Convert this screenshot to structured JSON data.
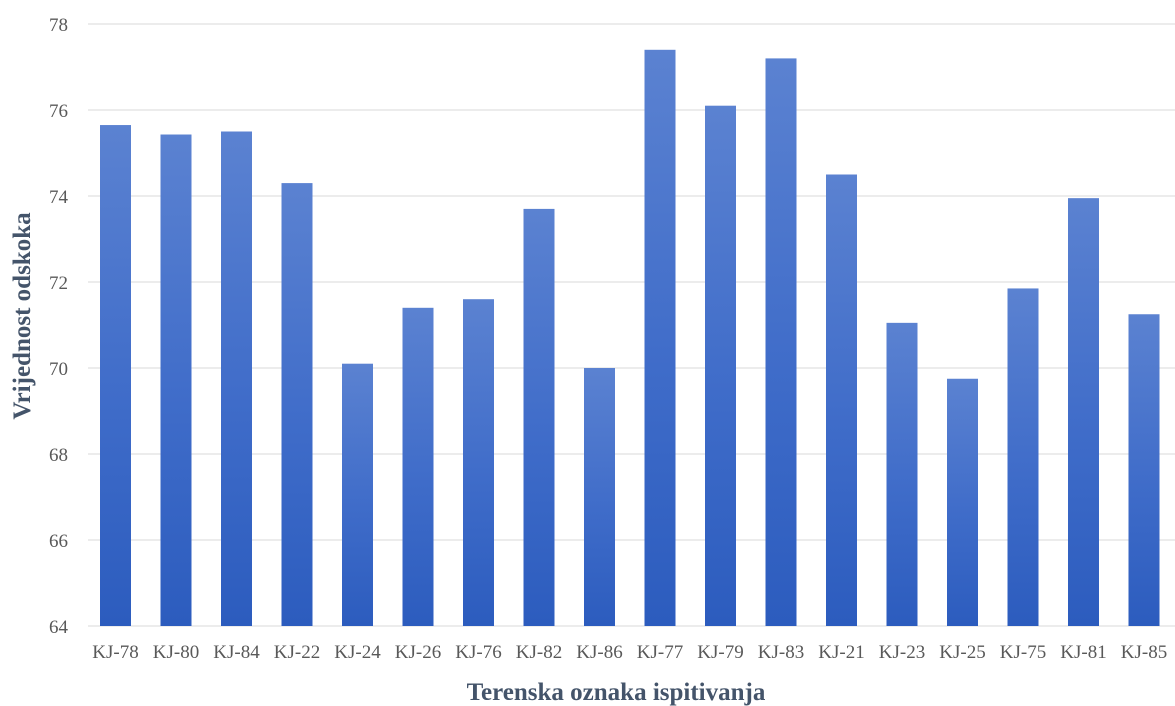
{
  "chart_data": {
    "type": "bar",
    "title": "",
    "xlabel": "Terenska oznaka ispitivanja",
    "ylabel": "Vrijednost odskoka",
    "categories": [
      "KJ-78",
      "KJ-80",
      "KJ-84",
      "KJ-22",
      "KJ-24",
      "KJ-26",
      "KJ-76",
      "KJ-82",
      "KJ-86",
      "KJ-77",
      "KJ-79",
      "KJ-83",
      "KJ-21",
      "KJ-23",
      "KJ-25",
      "KJ-75",
      "KJ-81",
      "KJ-85"
    ],
    "values": [
      75.65,
      75.43,
      75.5,
      74.3,
      70.1,
      71.4,
      71.6,
      73.7,
      70.0,
      77.4,
      76.1,
      77.2,
      74.5,
      71.05,
      69.75,
      71.85,
      73.95,
      71.25
    ],
    "ylim": [
      64,
      78
    ],
    "yticks": [
      64,
      66,
      68,
      70,
      72,
      74,
      76,
      78
    ],
    "grid": true,
    "legend": "none",
    "colors": {
      "bar_top": "#5b82d1",
      "bar_bottom": "#2c5cbe",
      "grid": "#d9d9d9",
      "tick_text": "#595959",
      "axis_title": "#44546a"
    }
  }
}
